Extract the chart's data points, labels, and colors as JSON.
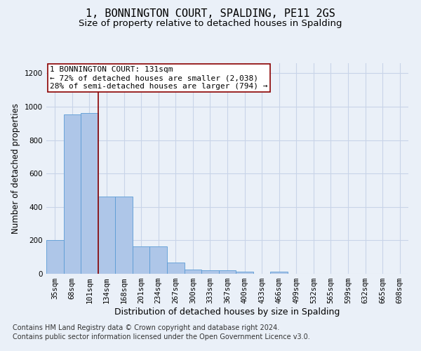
{
  "title": "1, BONNINGTON COURT, SPALDING, PE11 2GS",
  "subtitle": "Size of property relative to detached houses in Spalding",
  "xlabel": "Distribution of detached houses by size in Spalding",
  "ylabel": "Number of detached properties",
  "footnote1": "Contains HM Land Registry data © Crown copyright and database right 2024.",
  "footnote2": "Contains public sector information licensed under the Open Government Licence v3.0.",
  "categories": [
    "35sqm",
    "68sqm",
    "101sqm",
    "134sqm",
    "168sqm",
    "201sqm",
    "234sqm",
    "267sqm",
    "300sqm",
    "333sqm",
    "367sqm",
    "400sqm",
    "433sqm",
    "466sqm",
    "499sqm",
    "532sqm",
    "565sqm",
    "599sqm",
    "632sqm",
    "665sqm",
    "698sqm"
  ],
  "values": [
    200,
    955,
    960,
    462,
    462,
    163,
    163,
    68,
    25,
    20,
    20,
    13,
    0,
    13,
    0,
    0,
    0,
    0,
    0,
    0,
    0
  ],
  "bar_color": "#aec6e8",
  "bar_edge_color": "#5b9bd5",
  "grid_color": "#c8d4e8",
  "vline_x_idx": 2,
  "vline_color": "#8b0000",
  "annotation_line1": "1 BONNINGTON COURT: 131sqm",
  "annotation_line2": "← 72% of detached houses are smaller (2,038)",
  "annotation_line3": "28% of semi-detached houses are larger (794) →",
  "annotation_box_color": "#ffffff",
  "annotation_box_edge_color": "#8b0000",
  "ylim": [
    0,
    1260
  ],
  "yticks": [
    0,
    200,
    400,
    600,
    800,
    1000,
    1200
  ],
  "background_color": "#eaf0f8",
  "title_fontsize": 11,
  "subtitle_fontsize": 9.5,
  "xlabel_fontsize": 9,
  "ylabel_fontsize": 8.5,
  "tick_fontsize": 7.5,
  "annotation_fontsize": 8,
  "footnote_fontsize": 7
}
